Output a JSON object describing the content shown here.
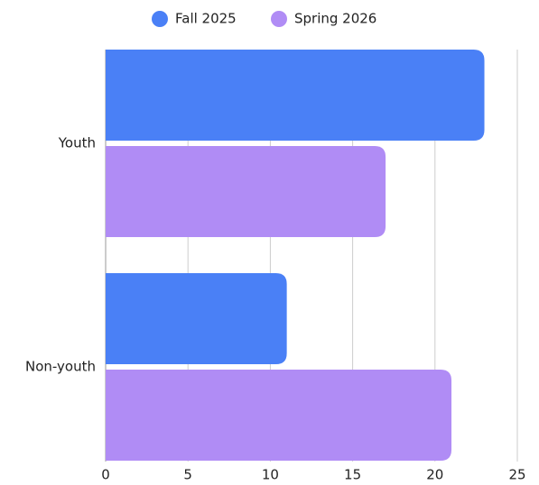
{
  "chart_data": {
    "type": "bar",
    "orientation": "horizontal",
    "categories": [
      "Youth",
      "Non-youth"
    ],
    "series": [
      {
        "name": "Fall 2025",
        "color": "#4a80f6",
        "values": [
          23,
          11
        ]
      },
      {
        "name": "Spring 2026",
        "color": "#b08cf5",
        "values": [
          17,
          21
        ]
      }
    ],
    "xlim": [
      0,
      25
    ],
    "xticks": [
      0,
      5,
      10,
      15,
      20,
      25
    ],
    "grid": true,
    "legend": "top"
  }
}
